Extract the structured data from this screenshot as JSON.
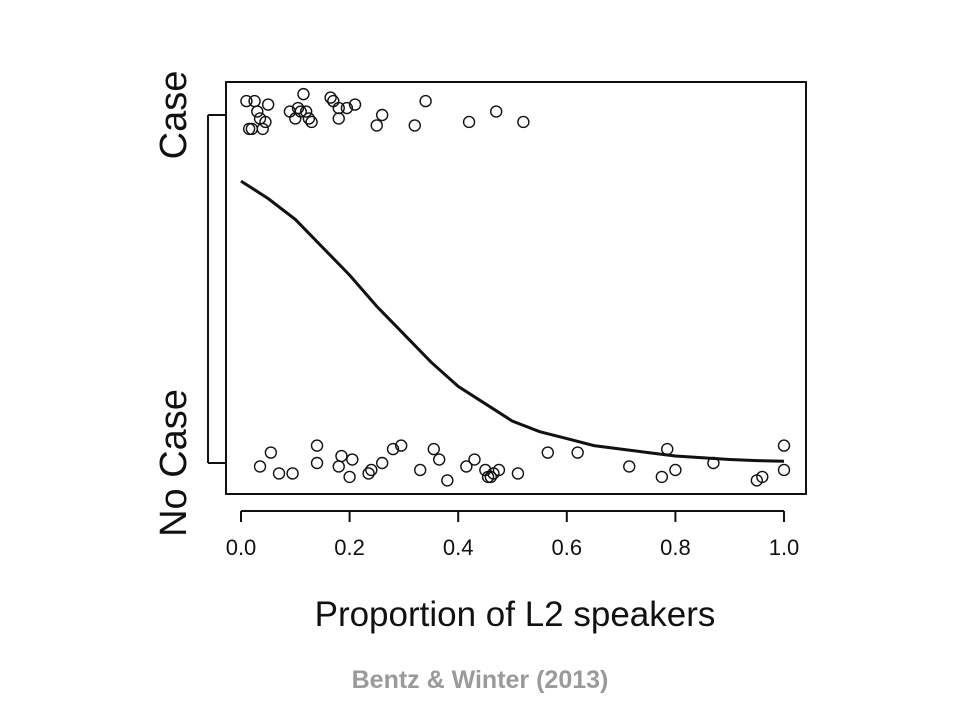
{
  "chart_data": {
    "type": "scatter",
    "xlabel": "Proportion of L2 speakers",
    "ylabel_categories": [
      "No Case",
      "Case"
    ],
    "xlim": [
      0.0,
      1.0
    ],
    "x_ticks": [
      "0.0",
      "0.2",
      "0.4",
      "0.6",
      "0.8",
      "1.0"
    ],
    "x_tick_values": [
      0.0,
      0.2,
      0.4,
      0.6,
      0.8,
      1.0
    ],
    "grid": false,
    "legend": "none",
    "points": {
      "case": [
        {
          "x": 0.01,
          "y": 1.04
        },
        {
          "x": 0.015,
          "y": 0.96
        },
        {
          "x": 0.02,
          "y": 0.96
        },
        {
          "x": 0.025,
          "y": 1.04
        },
        {
          "x": 0.03,
          "y": 1.01
        },
        {
          "x": 0.035,
          "y": 0.99
        },
        {
          "x": 0.04,
          "y": 0.96
        },
        {
          "x": 0.045,
          "y": 0.98
        },
        {
          "x": 0.05,
          "y": 1.03
        },
        {
          "x": 0.09,
          "y": 1.01
        },
        {
          "x": 0.1,
          "y": 0.99
        },
        {
          "x": 0.105,
          "y": 1.02
        },
        {
          "x": 0.11,
          "y": 1.01
        },
        {
          "x": 0.115,
          "y": 1.06
        },
        {
          "x": 0.12,
          "y": 1.01
        },
        {
          "x": 0.125,
          "y": 0.99
        },
        {
          "x": 0.13,
          "y": 0.98
        },
        {
          "x": 0.165,
          "y": 1.05
        },
        {
          "x": 0.17,
          "y": 1.04
        },
        {
          "x": 0.18,
          "y": 1.02
        },
        {
          "x": 0.18,
          "y": 0.99
        },
        {
          "x": 0.195,
          "y": 1.02
        },
        {
          "x": 0.21,
          "y": 1.03
        },
        {
          "x": 0.25,
          "y": 0.97
        },
        {
          "x": 0.26,
          "y": 1.0
        },
        {
          "x": 0.32,
          "y": 0.97
        },
        {
          "x": 0.34,
          "y": 1.04
        },
        {
          "x": 0.42,
          "y": 0.98
        },
        {
          "x": 0.47,
          "y": 1.01
        },
        {
          "x": 0.52,
          "y": 0.98
        }
      ],
      "no_case": [
        {
          "x": 0.035,
          "y": -0.01
        },
        {
          "x": 0.055,
          "y": 0.03
        },
        {
          "x": 0.07,
          "y": -0.03
        },
        {
          "x": 0.095,
          "y": -0.03
        },
        {
          "x": 0.14,
          "y": 0.0
        },
        {
          "x": 0.14,
          "y": 0.05
        },
        {
          "x": 0.18,
          "y": -0.01
        },
        {
          "x": 0.185,
          "y": 0.02
        },
        {
          "x": 0.2,
          "y": -0.04
        },
        {
          "x": 0.205,
          "y": 0.01
        },
        {
          "x": 0.235,
          "y": -0.03
        },
        {
          "x": 0.24,
          "y": -0.02
        },
        {
          "x": 0.26,
          "y": 0.0
        },
        {
          "x": 0.28,
          "y": 0.04
        },
        {
          "x": 0.295,
          "y": 0.05
        },
        {
          "x": 0.33,
          "y": -0.02
        },
        {
          "x": 0.355,
          "y": 0.04
        },
        {
          "x": 0.365,
          "y": 0.01
        },
        {
          "x": 0.38,
          "y": -0.05
        },
        {
          "x": 0.415,
          "y": -0.01
        },
        {
          "x": 0.43,
          "y": 0.01
        },
        {
          "x": 0.45,
          "y": -0.02
        },
        {
          "x": 0.455,
          "y": -0.04
        },
        {
          "x": 0.46,
          "y": -0.04
        },
        {
          "x": 0.465,
          "y": -0.03
        },
        {
          "x": 0.475,
          "y": -0.02
        },
        {
          "x": 0.51,
          "y": -0.03
        },
        {
          "x": 0.565,
          "y": 0.03
        },
        {
          "x": 0.62,
          "y": 0.03
        },
        {
          "x": 0.715,
          "y": -0.01
        },
        {
          "x": 0.775,
          "y": -0.04
        },
        {
          "x": 0.785,
          "y": 0.04
        },
        {
          "x": 0.8,
          "y": -0.02
        },
        {
          "x": 0.87,
          "y": 0.0
        },
        {
          "x": 0.95,
          "y": -0.05
        },
        {
          "x": 0.96,
          "y": -0.04
        },
        {
          "x": 1.0,
          "y": -0.02
        },
        {
          "x": 1.0,
          "y": 0.05
        }
      ]
    },
    "curve": {
      "type": "logistic",
      "x": [
        0.0,
        0.05,
        0.1,
        0.15,
        0.2,
        0.25,
        0.3,
        0.35,
        0.4,
        0.45,
        0.5,
        0.55,
        0.6,
        0.65,
        0.7,
        0.75,
        0.8,
        0.85,
        0.9,
        0.95,
        1.0
      ],
      "y": [
        0.81,
        0.76,
        0.7,
        0.62,
        0.54,
        0.45,
        0.37,
        0.29,
        0.22,
        0.17,
        0.12,
        0.09,
        0.07,
        0.05,
        0.04,
        0.03,
        0.02,
        0.015,
        0.01,
        0.007,
        0.005
      ]
    }
  },
  "citation": "Bentz & Winter (2013)"
}
